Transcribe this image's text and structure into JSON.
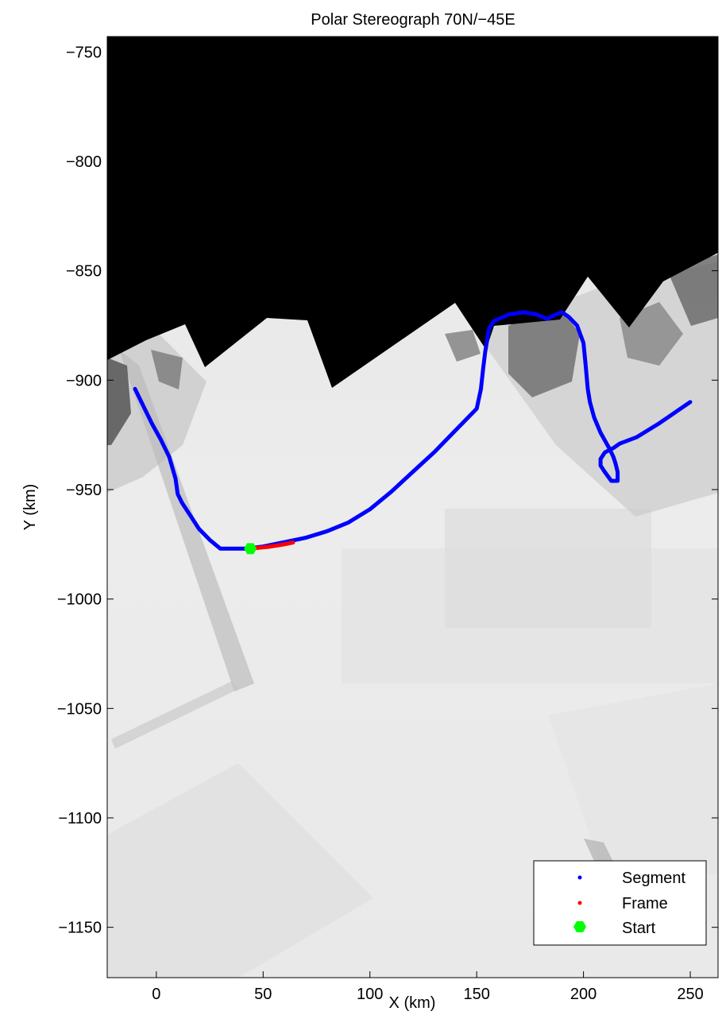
{
  "chart_data": {
    "type": "map-track",
    "title": "Polar Stereograph 70N/−45E",
    "xlabel": "X (km)",
    "ylabel": "Y (km)",
    "xlim": [
      -23,
      263
    ],
    "ylim": [
      -1173,
      -743
    ],
    "xticks": [
      0,
      50,
      100,
      150,
      200,
      250
    ],
    "yticks": [
      -750,
      -800,
      -850,
      -900,
      -950,
      -1000,
      -1050,
      -1100,
      -1150
    ],
    "basemap": "greyscale satellite mosaic, black where no data",
    "legend": {
      "placement": "bottom-right",
      "entries": [
        {
          "label": "Segment",
          "color": "#0000ff",
          "marker": "dot"
        },
        {
          "label": "Frame",
          "color": "#ff0000",
          "marker": "dot"
        },
        {
          "label": "Start",
          "color": "#00ff00",
          "marker": "hexagon"
        }
      ]
    },
    "series": [
      {
        "name": "Segment",
        "color": "#0000ff",
        "x": [
          -10,
          -6,
          -2,
          2,
          6,
          9,
          10,
          12,
          16,
          20,
          25,
          30,
          33,
          37,
          42,
          50,
          60,
          70,
          80,
          90,
          100,
          110,
          120,
          130,
          140,
          150,
          152,
          153,
          154,
          155,
          155,
          156,
          158,
          165,
          172,
          178,
          183,
          187,
          190,
          193,
          197,
          200,
          201,
          202,
          203,
          205,
          208,
          212,
          214,
          215,
          216,
          216,
          213,
          210,
          208,
          208,
          210,
          214,
          217,
          225,
          235,
          244,
          250
        ],
        "y": [
          -904,
          -912,
          -920,
          -927,
          -935,
          -945,
          -952,
          -956,
          -962,
          -968,
          -973,
          -977,
          -977,
          -977,
          -977,
          -976,
          -974,
          -972,
          -969,
          -965,
          -959,
          -951,
          -942,
          -933,
          -923,
          -913,
          -904,
          -895,
          -887,
          -881,
          -880,
          -876,
          -873,
          -870,
          -869,
          -870,
          -872,
          -870,
          -869,
          -871,
          -875,
          -883,
          -893,
          -904,
          -910,
          -917,
          -924,
          -931,
          -935,
          -938,
          -942,
          -946,
          -946,
          -942,
          -939,
          -936,
          -933,
          -931,
          -929,
          -926,
          -920,
          -914,
          -910
        ]
      },
      {
        "name": "Frame",
        "color": "#ff0000",
        "x": [
          44,
          48,
          52,
          56,
          60,
          64
        ],
        "y": [
          -977,
          -976.6,
          -976.2,
          -975.6,
          -975.0,
          -974.2
        ]
      },
      {
        "name": "Start",
        "color": "#00ff00",
        "x": [
          44
        ],
        "y": [
          -977
        ]
      }
    ]
  }
}
